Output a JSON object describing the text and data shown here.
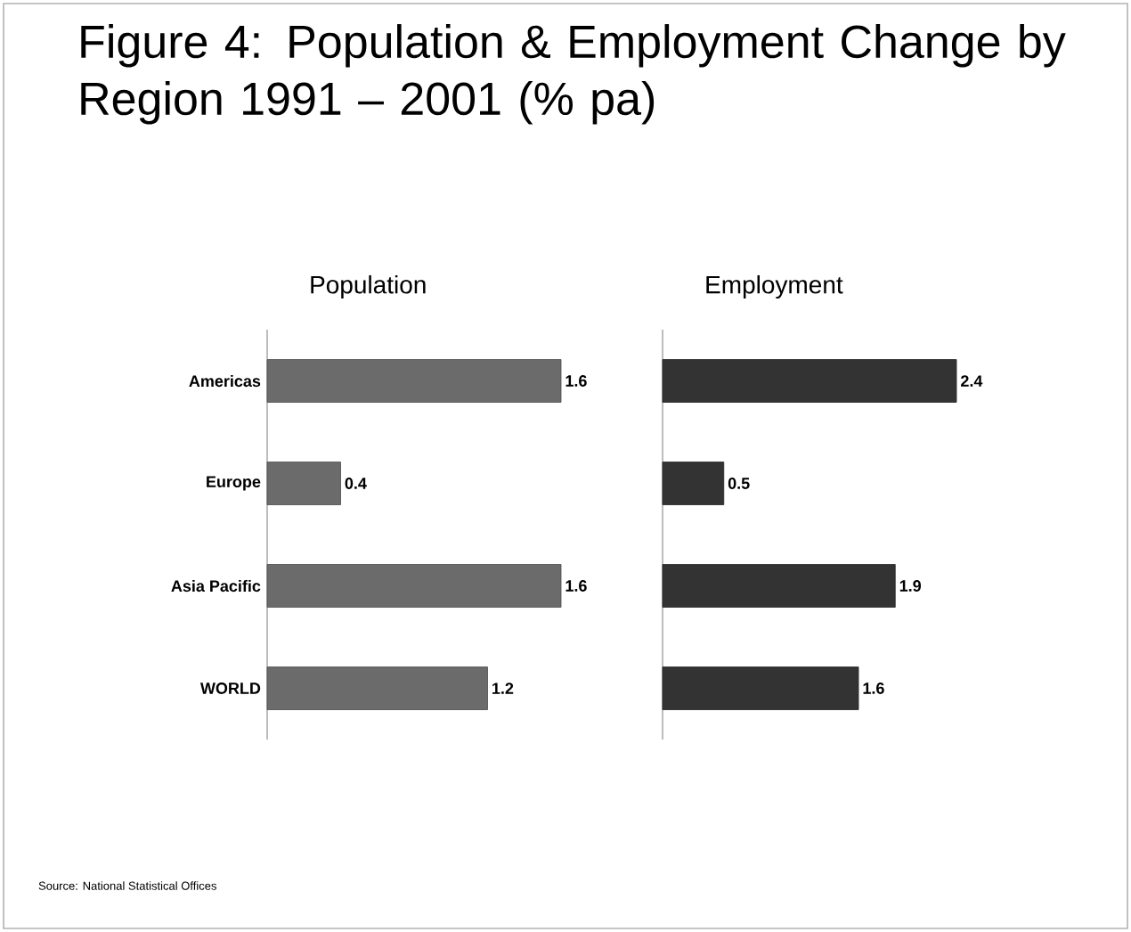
{
  "chart_data": [
    {
      "type": "bar",
      "orientation": "horizontal",
      "title": "Figure 4: Population & Employment Change by Region 1991 – 2001 (% pa)",
      "subtitle": "Population",
      "annotations": [
        "Source: National Statistical Offices"
      ],
      "categories": [
        "Americas",
        "Europe",
        "Asia Pacific",
        "WORLD"
      ],
      "values": [
        1.6,
        0.4,
        1.6,
        1.2
      ],
      "color": "#6b6b6b",
      "data_labels": true
    },
    {
      "type": "bar",
      "orientation": "horizontal",
      "subtitle": "Employment",
      "categories": [
        null,
        null,
        null,
        null
      ],
      "values": [
        2.4,
        0.5,
        1.9,
        1.6
      ],
      "color": "#333333",
      "data_labels": true
    }
  ]
}
